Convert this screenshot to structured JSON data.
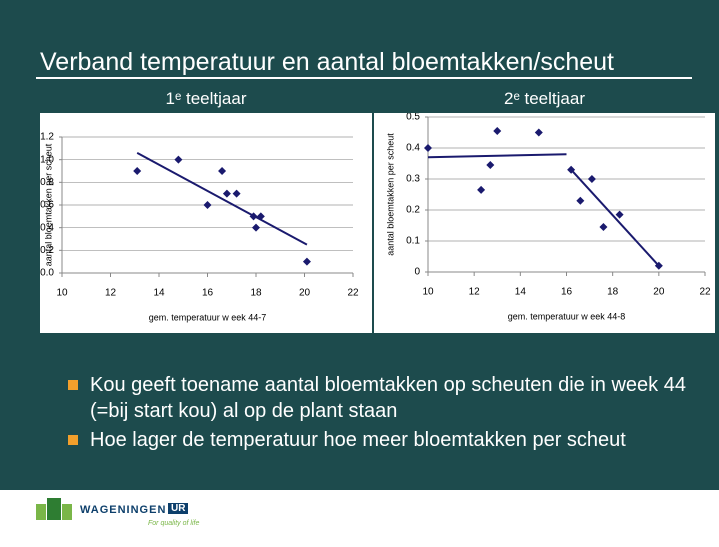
{
  "title": "Verband temperatuur en aantal bloemtakken/scheut",
  "chart_data": [
    {
      "type": "scatter",
      "title": "1ᵉ teeltjaar",
      "x_label": "gem. temperatuur w eek 44-7",
      "y_label": "aantal bloemtakken per scheut",
      "series": [
        {
          "color": "#1a1a6e",
          "x": [
            13.1,
            14.8,
            16.0,
            16.6,
            16.8,
            17.2,
            17.9,
            18.0,
            18.2,
            20.1
          ],
          "values": [
            0.9,
            1.0,
            0.6,
            0.9,
            0.7,
            0.7,
            0.5,
            0.4,
            0.5,
            0.1
          ]
        }
      ],
      "trendlines": [
        {
          "x": [
            13.1,
            20.1
          ],
          "y": [
            1.06,
            0.25
          ]
        }
      ],
      "xlim": [
        10,
        22
      ],
      "xticks": [
        10,
        12,
        14,
        16,
        18,
        20,
        22
      ],
      "ylim": [
        0,
        1.2
      ],
      "yticks": [
        {
          "value": 0,
          "label": "0.0"
        },
        0.2,
        0.4,
        0.6,
        0.8,
        {
          "value": 1,
          "label": "1.0"
        },
        1.2
      ],
      "grid": true
    },
    {
      "type": "scatter",
      "title": "2ᵉ teeltjaar",
      "x_label": "gem. temperatuur w eek 44-8",
      "y_label": "aantal bloemtakken per scheut",
      "series": [
        {
          "color": "#1a1a6e",
          "x": [
            10.0,
            12.3,
            12.7,
            13.0,
            14.8,
            16.2,
            16.6,
            17.1,
            17.6,
            18.3,
            20.0
          ],
          "values": [
            0.4,
            0.265,
            0.345,
            0.455,
            0.45,
            0.33,
            0.23,
            0.3,
            0.145,
            0.185,
            0.02
          ]
        }
      ],
      "trendlines": [
        {
          "x": [
            10,
            16
          ],
          "y": [
            0.37,
            0.38
          ]
        },
        {
          "x": [
            16.2,
            20
          ],
          "y": [
            0.33,
            0.02
          ]
        }
      ],
      "xlim": [
        10,
        22
      ],
      "xticks": [
        10,
        12,
        14,
        16,
        18,
        20,
        22
      ],
      "ylim": [
        0,
        0.5
      ],
      "yticks": [
        0,
        0.1,
        0.2,
        0.3,
        0.4,
        0.5
      ],
      "grid": true
    }
  ],
  "bullets": [
    "Kou geeft toename aantal bloemtakken op scheuten die in week 44 (=bij start kou) al op de plant staan",
    "Hoe lager de temperatuur hoe meer bloemtakken per scheut"
  ],
  "logo": {
    "name": "WAGENINGEN",
    "mark": "UR",
    "tagline": "For quality of life"
  }
}
